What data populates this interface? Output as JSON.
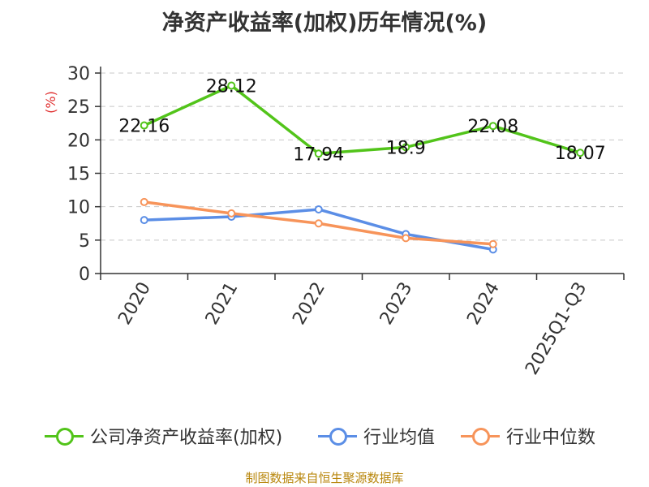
{
  "chart_data": {
    "type": "line",
    "title": "净资产收益率(加权)历年情况(%)",
    "ylabel": "(%)",
    "xlabel": "",
    "categories": [
      "2020",
      "2021",
      "2022",
      "2023",
      "2024",
      "2025Q1-Q3"
    ],
    "ylim": [
      0,
      30
    ],
    "yticks": [
      0,
      5,
      10,
      15,
      20,
      25,
      30
    ],
    "grid": true,
    "legend_position": "bottom",
    "series": [
      {
        "name": "公司净资产收益率(加权)",
        "color": "#52c41a",
        "values": [
          22.16,
          28.12,
          17.94,
          18.9,
          22.08,
          18.07
        ],
        "labels": [
          "22.16",
          "28.12",
          "17.94",
          "18.9",
          "22.08",
          "18.07"
        ]
      },
      {
        "name": "行业均值",
        "color": "#5b8ee6",
        "values": [
          8.0,
          8.5,
          9.6,
          5.9,
          3.6,
          null
        ]
      },
      {
        "name": "行业中位数",
        "color": "#f7945a",
        "values": [
          10.7,
          9.0,
          7.5,
          5.3,
          4.4,
          null
        ]
      }
    ]
  },
  "source_text": "制图数据来自恒生聚源数据库"
}
